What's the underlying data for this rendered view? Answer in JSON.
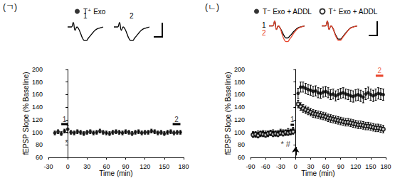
{
  "chart_data": [
    {
      "type": "scatter",
      "panel_label": "(ㄱ)",
      "xlabel": "Time (min)",
      "ylabel": "fEPSP Slope (% Baseline)",
      "xlim": [
        -30,
        180
      ],
      "xticks": [
        -30,
        0,
        30,
        60,
        90,
        120,
        150,
        180
      ],
      "ylim": [
        60,
        200
      ],
      "yticks": [
        60,
        80,
        100,
        120,
        140,
        160,
        180,
        200
      ],
      "grid": false,
      "legend": "top",
      "series": [
        {
          "name": "T⁺ Exo",
          "color": "#000000",
          "marker": "circle",
          "x": [
            -20,
            -15,
            -10,
            -5,
            0,
            5,
            10,
            15,
            20,
            25,
            30,
            35,
            40,
            45,
            50,
            55,
            60,
            65,
            70,
            75,
            80,
            85,
            90,
            95,
            100,
            105,
            110,
            115,
            120,
            125,
            130,
            135,
            140,
            145,
            150,
            155,
            160,
            165,
            170,
            175
          ],
          "values": [
            99,
            101,
            98,
            102,
            105,
            100,
            99,
            101,
            100,
            98,
            100,
            101,
            99,
            100,
            102,
            100,
            99,
            98,
            100,
            101,
            100,
            99,
            101,
            100,
            98,
            100,
            101,
            99,
            100,
            100,
            102,
            101,
            99,
            100,
            98,
            100,
            101,
            99,
            100,
            100
          ],
          "errors": [
            3,
            3,
            3,
            3,
            6,
            3,
            3,
            3,
            3,
            3,
            3,
            3,
            3,
            3,
            3,
            3,
            3,
            3,
            3,
            3,
            3,
            3,
            3,
            3,
            3,
            3,
            3,
            3,
            3,
            3,
            3,
            3,
            3,
            3,
            3,
            3,
            3,
            3,
            3,
            3
          ]
        }
      ],
      "periods": [
        {
          "label": "1",
          "x": [
            -10,
            0
          ],
          "y": 113,
          "color": "#000000"
        },
        {
          "label": "2",
          "x": [
            163,
            175
          ],
          "y": 113,
          "color": "#000000"
        }
      ],
      "annotations": [
        {
          "text": "*",
          "x": -2,
          "y": 84
        }
      ],
      "arrows": [],
      "insets": [
        {
          "ylim": [
            -15,
            5
          ],
          "tick_labels": false,
          "traces": [
            {
              "label": "1",
              "color": "#000000",
              "values": [
                0,
                0,
                0,
                4,
                -3,
                0,
                -2,
                -6,
                -10,
                -12,
                -12,
                -10,
                -8,
                -6,
                -4,
                -2.5,
                -1.5,
                -1,
                -0.5,
                0
              ]
            }
          ]
        },
        {
          "ylim": [
            -15,
            5
          ],
          "tick_labels": false,
          "traces": [
            {
              "label": "2",
              "color": "#000000",
              "values": [
                0,
                0,
                0,
                4,
                -3,
                0,
                -2,
                -6,
                -10,
                -12,
                -12,
                -10,
                -8,
                -6,
                -4,
                -2.5,
                -1.5,
                -1,
                -0.5,
                0
              ]
            }
          ]
        }
      ]
    },
    {
      "type": "scatter",
      "panel_label": "(ㄴ)",
      "xlabel": "Time (min)",
      "ylabel": "fEPSP Slope (% Baseline)",
      "xlim": [
        -90,
        180
      ],
      "xticks": [
        -90,
        -60,
        -30,
        0,
        30,
        60,
        90,
        120,
        150,
        180
      ],
      "ylim": [
        60,
        200
      ],
      "yticks": [
        60,
        80,
        100,
        120,
        140,
        160,
        180,
        200
      ],
      "grid": false,
      "legend": "top",
      "series": [
        {
          "name": "T⁻ Exo + ADDL",
          "color": "#000000",
          "marker": "circle",
          "x": [
            -85,
            -80,
            -75,
            -70,
            -65,
            -60,
            -55,
            -50,
            -45,
            -40,
            -35,
            -30,
            -25,
            -20,
            -15,
            -10,
            -5,
            5,
            10,
            15,
            20,
            25,
            30,
            35,
            40,
            45,
            50,
            55,
            60,
            65,
            70,
            75,
            80,
            85,
            90,
            95,
            100,
            105,
            110,
            115,
            120,
            125,
            130,
            135,
            140,
            145,
            150,
            155,
            160,
            165,
            170,
            175
          ],
          "values": [
            97,
            96,
            98,
            97,
            99,
            98,
            97,
            99,
            100,
            98,
            99,
            101,
            100,
            99,
            102,
            101,
            104,
            162,
            172,
            172,
            170,
            168,
            167,
            165,
            166,
            163,
            162,
            164,
            165,
            163,
            160,
            161,
            158,
            160,
            162,
            163,
            161,
            160,
            158,
            157,
            159,
            160,
            158,
            156,
            161,
            163,
            160,
            158,
            160,
            162,
            161,
            160
          ],
          "errors": [
            4,
            4,
            4,
            4,
            4,
            4,
            4,
            4,
            4,
            4,
            4,
            4,
            4,
            4,
            4,
            4,
            4,
            8,
            8,
            8,
            8,
            8,
            8,
            8,
            8,
            8,
            8,
            8,
            8,
            8,
            8,
            8,
            8,
            8,
            8,
            8,
            8,
            8,
            9,
            9,
            9,
            9,
            9,
            9,
            9,
            9,
            9,
            9,
            9,
            9,
            9,
            9
          ]
        },
        {
          "name": "T⁺ Exo + ADDL",
          "color": "#000000",
          "marker": "open_circle",
          "x": [
            -85,
            -80,
            -75,
            -70,
            -65,
            -60,
            -55,
            -50,
            -45,
            -40,
            -35,
            -30,
            -25,
            -20,
            -15,
            -10,
            -5,
            5,
            10,
            15,
            20,
            25,
            30,
            35,
            40,
            45,
            50,
            55,
            60,
            65,
            70,
            75,
            80,
            85,
            90,
            95,
            100,
            105,
            110,
            115,
            120,
            125,
            130,
            135,
            140,
            145,
            150,
            155,
            160,
            165,
            170,
            175
          ],
          "values": [
            96,
            97,
            95,
            98,
            97,
            96,
            98,
            99,
            97,
            98,
            97,
            99,
            98,
            100,
            99,
            100,
            101,
            145,
            141,
            138,
            136,
            134,
            132,
            130,
            129,
            128,
            127,
            126,
            125,
            123,
            122,
            121,
            120,
            119,
            118,
            117,
            116,
            116,
            115,
            114,
            113,
            112,
            112,
            111,
            110,
            110,
            109,
            108,
            107,
            107,
            106,
            105
          ],
          "errors": [
            4,
            4,
            4,
            4,
            4,
            4,
            4,
            4,
            4,
            4,
            4,
            4,
            4,
            4,
            4,
            4,
            4,
            6,
            6,
            6,
            6,
            6,
            6,
            6,
            6,
            6,
            6,
            6,
            6,
            6,
            6,
            6,
            6,
            6,
            6,
            6,
            6,
            6,
            6,
            6,
            6,
            6,
            6,
            6,
            6,
            6,
            6,
            6,
            6,
            6,
            6,
            6
          ]
        }
      ],
      "periods": [
        {
          "label": "1",
          "x": [
            -10,
            -3
          ],
          "y": 112,
          "color": "#000000"
        },
        {
          "label": "2",
          "x": [
            160,
            175
          ],
          "y": 190,
          "color": "#e8432a"
        }
      ],
      "annotations": [
        {
          "text": "* #",
          "x": -20,
          "y": 82
        }
      ],
      "arrows": [
        {
          "x": 0,
          "y": [
            63,
            77
          ]
        }
      ],
      "insets": [
        {
          "ylim": [
            -15,
            5
          ],
          "tick_labels": false,
          "traces": [
            {
              "label": "1",
              "color": "#000000",
              "values": [
                0,
                0,
                0,
                4,
                -3,
                0,
                -2,
                -5,
                -8,
                -10,
                -10,
                -8.5,
                -7,
                -5,
                -3.5,
                -2,
                -1.2,
                -0.8,
                -0.4,
                0
              ]
            },
            {
              "label": "2",
              "color": "#e8432a",
              "values": [
                0,
                0,
                0,
                4,
                -3,
                0,
                -2,
                -7,
                -11,
                -13,
                -13,
                -11,
                -9,
                -6.5,
                -4.5,
                -2.8,
                -1.6,
                -1,
                -0.5,
                0
              ]
            }
          ]
        },
        {
          "ylim": [
            -15,
            5
          ],
          "tick_labels": false,
          "traces": [
            {
              "color": "#000000",
              "values": [
                0,
                0,
                0,
                4,
                -3,
                0,
                -2,
                -6,
                -9,
                -11,
                -11,
                -9.5,
                -7.5,
                -5.5,
                -3.8,
                -2.2,
                -1.3,
                -0.8,
                -0.4,
                0
              ]
            },
            {
              "color": "#e8432a",
              "values": [
                0,
                0,
                0,
                4,
                -3,
                0,
                -2,
                -6.5,
                -10,
                -12,
                -12,
                -10,
                -8,
                -6,
                -4,
                -2.4,
                -1.4,
                -0.9,
                -0.4,
                0
              ]
            }
          ]
        }
      ]
    }
  ]
}
